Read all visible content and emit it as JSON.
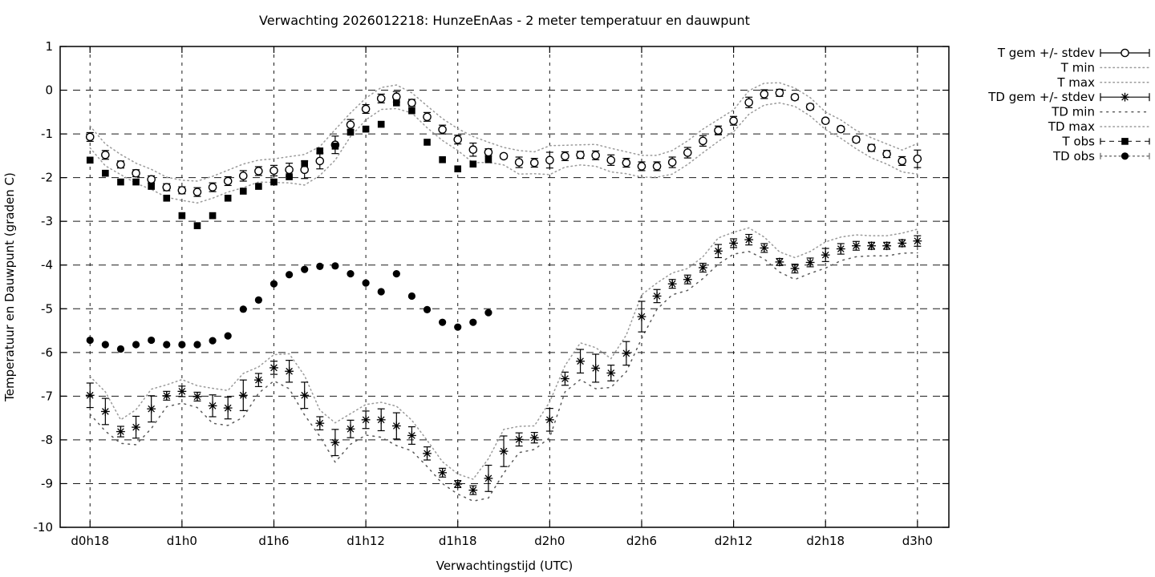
{
  "colors": {
    "foreground": "#000000",
    "grid": "#1a1a1a",
    "envelope": "#9a9a9a",
    "envelope_dark": "#5a5a5a",
    "background": "#ffffff"
  },
  "chart_data": {
    "type": "line",
    "title": "Verwachting 2026012218: HunzeEnAas - 2 meter temperatuur en dauwpunt",
    "xlabel": "Verwachtingstijd (UTC)",
    "ylabel": "Temperatuur en Dauwpunt (graden C)",
    "ylim": [
      -10,
      1
    ],
    "x_domain_hours": [
      -1.95,
      56.05
    ],
    "grid": true,
    "legend_position": "outside-right-top",
    "x_ticks": {
      "hours": [
        0,
        6,
        12,
        18,
        24,
        30,
        36,
        42,
        48,
        54
      ],
      "labels": [
        "d0h18",
        "d1h0",
        "d1h6",
        "d1h12",
        "d1h18",
        "d2h0",
        "d2h6",
        "d2h12",
        "d2h18",
        "d3h0"
      ]
    },
    "y_ticks": [
      1,
      0,
      -1,
      -2,
      -3,
      -4,
      -5,
      -6,
      -7,
      -8,
      -9,
      -10
    ],
    "series": [
      {
        "name": "T gem +/- stdev",
        "style": "errorbar-open-circle",
        "start_hour": 0,
        "values": [
          -1.07,
          -1.48,
          -1.7,
          -1.9,
          -2.04,
          -2.22,
          -2.29,
          -2.33,
          -2.22,
          -2.08,
          -1.96,
          -1.85,
          -1.84,
          -1.82,
          -1.82,
          -1.62,
          -1.25,
          -0.79,
          -0.43,
          -0.19,
          -0.15,
          -0.29,
          -0.61,
          -0.9,
          -1.13,
          -1.36,
          -1.42,
          -1.51,
          -1.65,
          -1.66,
          -1.6,
          -1.51,
          -1.48,
          -1.49,
          -1.6,
          -1.66,
          -1.74,
          -1.74,
          -1.65,
          -1.43,
          -1.16,
          -0.92,
          -0.7,
          -0.28,
          -0.09,
          -0.06,
          -0.16,
          -0.38,
          -0.7,
          -0.89,
          -1.13,
          -1.32,
          -1.46,
          -1.62,
          -1.57
        ],
        "stdev": [
          0.1,
          0.1,
          0.08,
          0.08,
          0.08,
          0.08,
          0.08,
          0.1,
          0.1,
          0.1,
          0.12,
          0.1,
          0.12,
          0.15,
          0.2,
          0.18,
          0.2,
          0.12,
          0.1,
          0.1,
          0.12,
          0.08,
          0.1,
          0.1,
          0.1,
          0.15,
          0.08,
          0.05,
          0.12,
          0.1,
          0.18,
          0.1,
          0.08,
          0.1,
          0.12,
          0.1,
          0.1,
          0.1,
          0.12,
          0.12,
          0.12,
          0.1,
          0.1,
          0.12,
          0.1,
          0.08,
          0.06,
          0.06,
          0.05,
          0.06,
          0.06,
          0.08,
          0.08,
          0.1,
          0.2
        ]
      },
      {
        "name": "T min",
        "style": "dotted-gray",
        "derived_from": "T gem +/- stdev",
        "rule": "mean - stdev - pad",
        "pad": 0.15
      },
      {
        "name": "T max",
        "style": "dotted-gray",
        "derived_from": "T gem +/- stdev",
        "rule": "mean + stdev + pad",
        "pad": 0.15
      },
      {
        "name": "TD gem +/- stdev",
        "style": "errorbar-asterisk",
        "start_hour": 0,
        "values": [
          -6.98,
          -7.35,
          -7.81,
          -7.71,
          -7.29,
          -6.99,
          -6.89,
          -7.01,
          -7.22,
          -7.27,
          -6.98,
          -6.63,
          -6.35,
          -6.43,
          -6.98,
          -7.62,
          -8.06,
          -7.75,
          -7.54,
          -7.54,
          -7.68,
          -7.9,
          -8.31,
          -8.75,
          -9.01,
          -9.15,
          -8.88,
          -8.26,
          -7.99,
          -7.95,
          -7.54,
          -6.6,
          -6.2,
          -6.36,
          -6.47,
          -6.02,
          -5.18,
          -4.71,
          -4.43,
          -4.33,
          -4.06,
          -3.68,
          -3.5,
          -3.42,
          -3.61,
          -3.93,
          -4.08,
          -3.94,
          -3.77,
          -3.63,
          -3.56,
          -3.56,
          -3.56,
          -3.5,
          -3.45
        ],
        "stdev": [
          0.28,
          0.3,
          0.12,
          0.25,
          0.3,
          0.1,
          0.12,
          0.1,
          0.25,
          0.25,
          0.35,
          0.15,
          0.15,
          0.25,
          0.3,
          0.15,
          0.3,
          0.2,
          0.2,
          0.25,
          0.3,
          0.2,
          0.15,
          0.1,
          0.08,
          0.1,
          0.3,
          0.35,
          0.15,
          0.12,
          0.26,
          0.15,
          0.27,
          0.32,
          0.18,
          0.27,
          0.35,
          0.15,
          0.1,
          0.1,
          0.1,
          0.15,
          0.1,
          0.12,
          0.1,
          0.08,
          0.1,
          0.1,
          0.15,
          0.12,
          0.1,
          0.08,
          0.08,
          0.08,
          0.12
        ]
      },
      {
        "name": "TD min",
        "style": "dotted-sparse",
        "derived_from": "TD gem +/- stdev",
        "rule": "mean - stdev - pad",
        "pad": 0.15
      },
      {
        "name": "TD max",
        "style": "dotted-gray",
        "derived_from": "TD gem +/- stdev",
        "rule": "mean + stdev + pad",
        "pad": 0.15
      },
      {
        "name": "T obs",
        "style": "filled-square",
        "start_hour": 0,
        "values": [
          -1.6,
          -1.9,
          -2.1,
          -2.1,
          -2.2,
          -2.47,
          -2.87,
          -3.1,
          -2.87,
          -2.47,
          -2.31,
          -2.2,
          -2.1,
          -1.98,
          -1.68,
          -1.39,
          -1.28,
          -0.96,
          -0.89,
          -0.78,
          -0.29,
          -0.47,
          -1.19,
          -1.59,
          -1.8,
          -1.69,
          -1.59
        ]
      },
      {
        "name": "TD obs",
        "style": "filled-circle",
        "start_hour": 0,
        "values": [
          -5.72,
          -5.82,
          -5.92,
          -5.82,
          -5.72,
          -5.82,
          -5.82,
          -5.82,
          -5.73,
          -5.62,
          -5.01,
          -4.8,
          -4.43,
          -4.22,
          -4.1,
          -4.03,
          -4.02,
          -4.2,
          -4.41,
          -4.61,
          -4.2,
          -4.71,
          -5.02,
          -5.31,
          -5.42,
          -5.31,
          -5.09
        ]
      }
    ],
    "legend_entries": [
      {
        "label": "T gem +/- stdev",
        "style": "errorbar-open-circle"
      },
      {
        "label": "T min",
        "style": "dotted-gray"
      },
      {
        "label": "T max",
        "style": "dotted-gray"
      },
      {
        "label": "TD gem +/- stdev",
        "style": "errorbar-asterisk"
      },
      {
        "label": "TD min",
        "style": "dotted-sparse"
      },
      {
        "label": "TD max",
        "style": "dotted-gray"
      },
      {
        "label": "T obs",
        "style": "dashed-filled-square"
      },
      {
        "label": "TD obs",
        "style": "dotted-filled-circle"
      }
    ]
  }
}
